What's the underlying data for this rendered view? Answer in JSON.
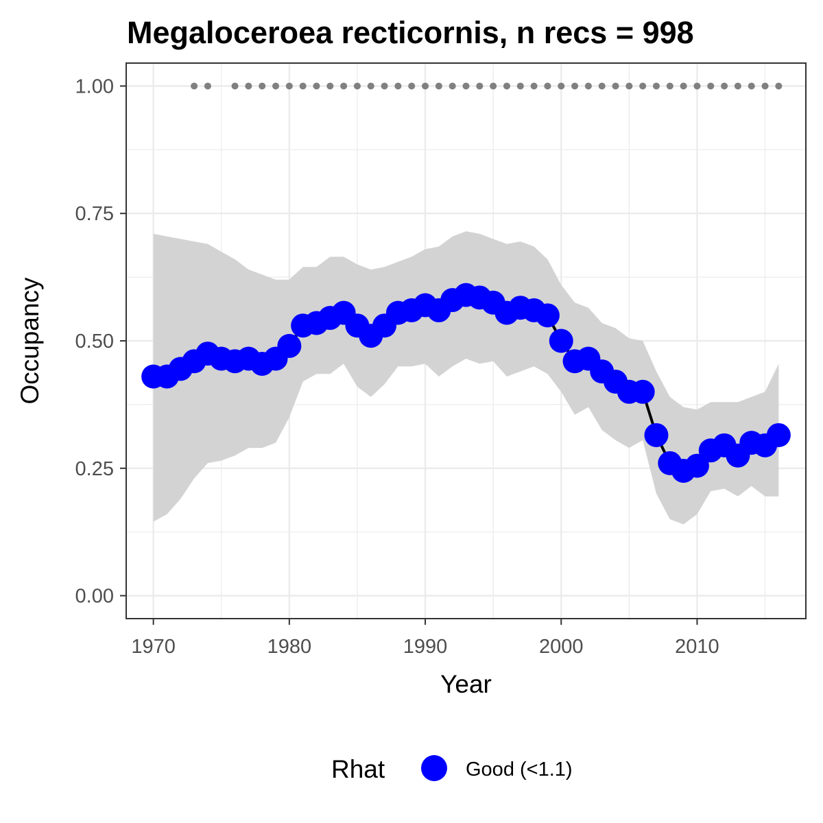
{
  "chart_data": {
    "type": "line",
    "title": "Megaloceroea recticornis, n recs = 998",
    "xlabel": "Year",
    "ylabel": "Occupancy",
    "xlim": [
      1968,
      2018
    ],
    "ylim": [
      -0.045,
      1.045
    ],
    "x_ticks": [
      1970,
      1980,
      1990,
      2000,
      2010
    ],
    "x_tick_labels": [
      "1970",
      "1980",
      "1990",
      "2000",
      "2010"
    ],
    "y_ticks": [
      0,
      0.25,
      0.5,
      0.75,
      1
    ],
    "y_tick_labels": [
      "0.00",
      "0.25",
      "0.50",
      "0.75",
      "1.00"
    ],
    "grid": true,
    "legend_position": "bottom",
    "legend": {
      "title": "Rhat",
      "items": [
        {
          "label": "Good (<1.1)",
          "color": "#0000ff"
        }
      ]
    },
    "colors": {
      "points": "#0000ff",
      "line": "#000000",
      "ribbon": "#d3d3d3",
      "record_dots": "#808080",
      "grid": "#ebebeb"
    },
    "series": [
      {
        "name": "Occupancy",
        "x": [
          1970,
          1971,
          1972,
          1973,
          1974,
          1975,
          1976,
          1977,
          1978,
          1979,
          1980,
          1981,
          1982,
          1983,
          1984,
          1985,
          1986,
          1987,
          1988,
          1989,
          1990,
          1991,
          1992,
          1993,
          1994,
          1995,
          1996,
          1997,
          1998,
          1999,
          2000,
          2001,
          2002,
          2003,
          2004,
          2005,
          2006,
          2007,
          2008,
          2009,
          2010,
          2011,
          2012,
          2013,
          2014,
          2015,
          2016
        ],
        "y": [
          0.43,
          0.43,
          0.445,
          0.46,
          0.475,
          0.465,
          0.46,
          0.465,
          0.455,
          0.465,
          0.49,
          0.53,
          0.535,
          0.545,
          0.555,
          0.53,
          0.51,
          0.53,
          0.555,
          0.56,
          0.57,
          0.56,
          0.58,
          0.59,
          0.585,
          0.575,
          0.555,
          0.565,
          0.56,
          0.55,
          0.5,
          0.46,
          0.465,
          0.44,
          0.42,
          0.4,
          0.4,
          0.315,
          0.26,
          0.245,
          0.255,
          0.285,
          0.295,
          0.275,
          0.3,
          0.295,
          0.315
        ]
      }
    ],
    "ribbon": {
      "x": [
        1970,
        1971,
        1972,
        1973,
        1974,
        1975,
        1976,
        1977,
        1978,
        1979,
        1980,
        1981,
        1982,
        1983,
        1984,
        1985,
        1986,
        1987,
        1988,
        1989,
        1990,
        1991,
        1992,
        1993,
        1994,
        1995,
        1996,
        1997,
        1998,
        1999,
        2000,
        2001,
        2002,
        2003,
        2004,
        2005,
        2006,
        2007,
        2008,
        2009,
        2010,
        2011,
        2012,
        2013,
        2014,
        2015,
        2016
      ],
      "lower": [
        0.145,
        0.16,
        0.19,
        0.23,
        0.26,
        0.265,
        0.275,
        0.29,
        0.29,
        0.3,
        0.35,
        0.42,
        0.435,
        0.435,
        0.455,
        0.41,
        0.39,
        0.415,
        0.45,
        0.45,
        0.455,
        0.43,
        0.45,
        0.465,
        0.455,
        0.46,
        0.43,
        0.44,
        0.45,
        0.435,
        0.4,
        0.355,
        0.37,
        0.325,
        0.305,
        0.29,
        0.305,
        0.2,
        0.15,
        0.14,
        0.16,
        0.205,
        0.21,
        0.195,
        0.215,
        0.195,
        0.195
      ],
      "upper": [
        0.71,
        0.705,
        0.7,
        0.695,
        0.69,
        0.675,
        0.66,
        0.64,
        0.63,
        0.62,
        0.62,
        0.645,
        0.645,
        0.665,
        0.665,
        0.65,
        0.64,
        0.645,
        0.655,
        0.665,
        0.68,
        0.685,
        0.705,
        0.715,
        0.71,
        0.7,
        0.69,
        0.695,
        0.685,
        0.66,
        0.61,
        0.575,
        0.565,
        0.535,
        0.525,
        0.505,
        0.5,
        0.44,
        0.39,
        0.37,
        0.365,
        0.38,
        0.38,
        0.38,
        0.39,
        0.4,
        0.455
      ]
    },
    "record_dots": {
      "y": 1.0,
      "x": [
        1973,
        1974,
        1976,
        1977,
        1978,
        1979,
        1980,
        1981,
        1982,
        1983,
        1984,
        1985,
        1986,
        1987,
        1988,
        1989,
        1990,
        1991,
        1992,
        1993,
        1994,
        1995,
        1996,
        1997,
        1998,
        1999,
        2000,
        2001,
        2002,
        2003,
        2004,
        2005,
        2006,
        2007,
        2008,
        2009,
        2010,
        2011,
        2012,
        2013,
        2014,
        2015,
        2016
      ]
    }
  }
}
